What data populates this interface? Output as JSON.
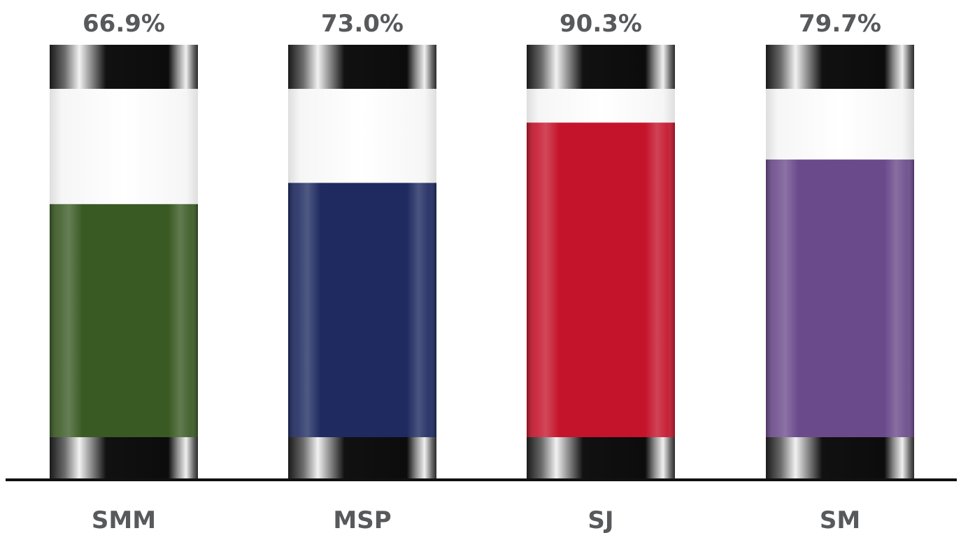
{
  "chart_data": {
    "type": "bar",
    "title": "",
    "xlabel": "",
    "ylabel": "",
    "ylim": [
      0,
      100
    ],
    "grid": false,
    "categories": [
      "SMM",
      "MSP",
      "SJ",
      "SM"
    ],
    "values": [
      66.9,
      73.0,
      90.3,
      79.7
    ],
    "value_labels": [
      "66.9%",
      "73.0%",
      "90.3%",
      "79.7%"
    ],
    "colors": [
      "#3a5a24",
      "#1e2a60",
      "#c4142b",
      "#6b4a8b"
    ],
    "style": "cylinder-tubes-with-chrome-caps"
  }
}
